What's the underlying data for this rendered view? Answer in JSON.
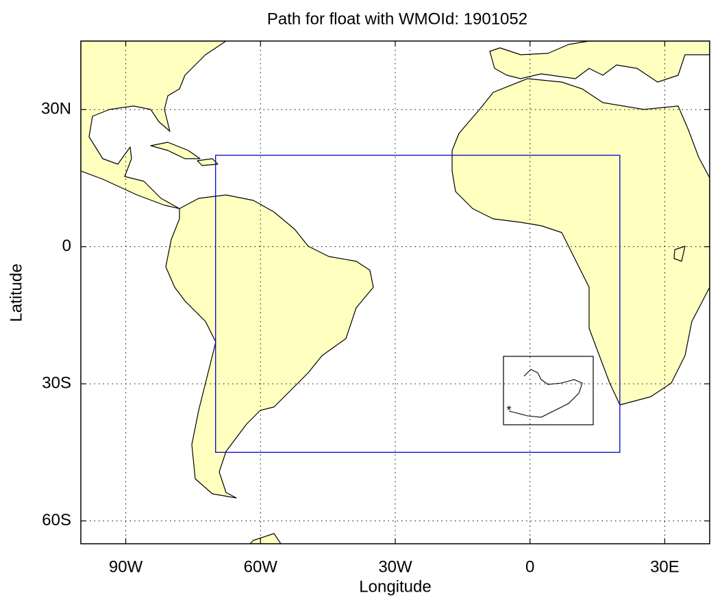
{
  "chart_data": {
    "type": "map",
    "title": "Path for float with WMOId: 1901052",
    "x_label": "Longitude",
    "y_label": "Latitude",
    "xlim": [
      -100,
      40
    ],
    "ylim": [
      -65,
      45
    ],
    "xticks": [
      {
        "value": -90,
        "label": "90W"
      },
      {
        "value": -60,
        "label": "60W"
      },
      {
        "value": -30,
        "label": "30W"
      },
      0,
      {
        "value": 30,
        "label": "30E"
      }
    ],
    "yticks": [
      {
        "value": 30,
        "label": "30N"
      },
      0,
      {
        "value": -30,
        "label": "30S"
      },
      {
        "value": -60,
        "label": "60S"
      }
    ],
    "grid": true,
    "land_color": "#ffffc0",
    "region": {
      "lon": [
        -70,
        20
      ],
      "lat": [
        -45,
        20
      ],
      "color": "#0000cc"
    }
  }
}
